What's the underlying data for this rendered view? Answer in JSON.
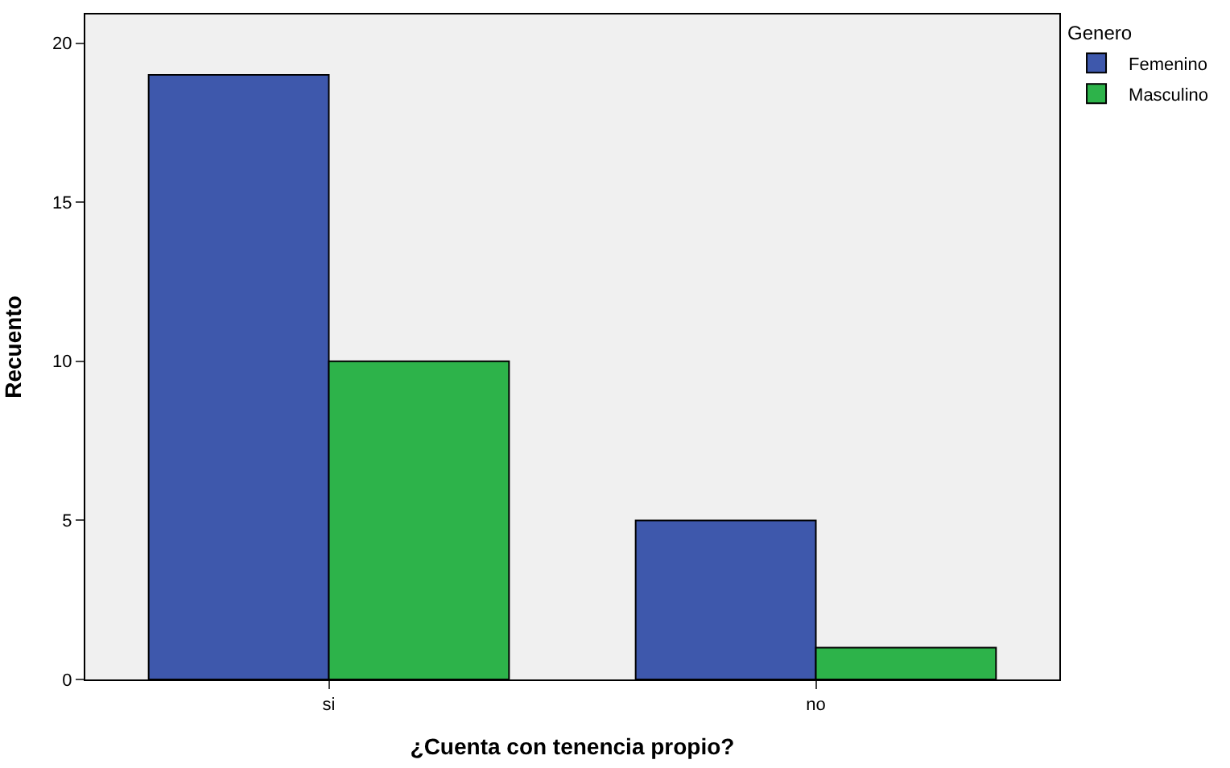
{
  "chart_data": {
    "type": "bar",
    "xlabel": "¿Cuenta con tenencia propio?",
    "ylabel": "Recuento",
    "legend_title": "Genero",
    "categories": [
      "si",
      "no"
    ],
    "series": [
      {
        "name": "Femenino",
        "color": "#3e58ac",
        "values": [
          19,
          5
        ]
      },
      {
        "name": "Masculino",
        "color": "#2db34a",
        "values": [
          10,
          1
        ]
      }
    ],
    "ylim": [
      0,
      20.9
    ],
    "yticks": [
      0,
      5,
      10,
      15,
      20
    ],
    "grid": false,
    "legend": "top right"
  }
}
